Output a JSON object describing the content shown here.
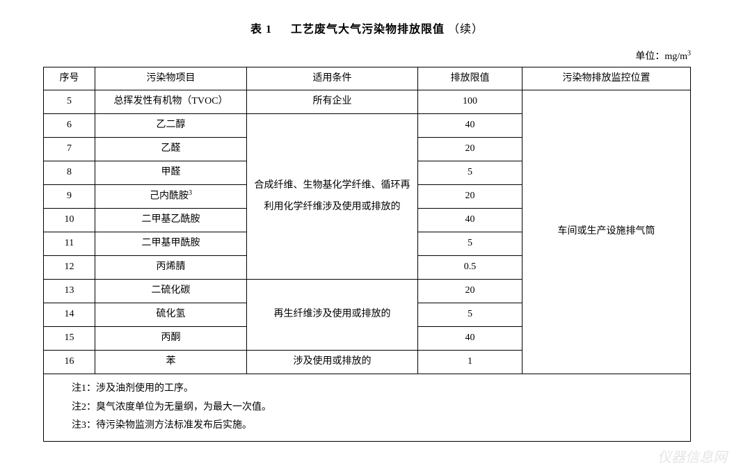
{
  "title": {
    "label": "表 1",
    "text": "工艺废气大气污染物排放限值",
    "suffix": "（续）"
  },
  "unit": {
    "prefix": "单位：",
    "value": "mg/m",
    "exponent": "3"
  },
  "headers": {
    "seq": "序号",
    "pollutant": "污染物项目",
    "condition": "适用条件",
    "limit": "排放限值",
    "location": "污染物排放监控位置"
  },
  "rows": [
    {
      "seq": "5",
      "pollutant": "总挥发性有机物（TVOC）",
      "limit": "100"
    },
    {
      "seq": "6",
      "pollutant": "乙二醇",
      "limit": "40"
    },
    {
      "seq": "7",
      "pollutant": "乙醛",
      "limit": "20"
    },
    {
      "seq": "8",
      "pollutant": "甲醛",
      "limit": "5"
    },
    {
      "seq": "9",
      "pollutant": "己内酰胺",
      "pollutant_sup": "3",
      "limit": "20"
    },
    {
      "seq": "10",
      "pollutant": "二甲基乙酰胺",
      "limit": "40"
    },
    {
      "seq": "11",
      "pollutant": "二甲基甲酰胺",
      "limit": "5"
    },
    {
      "seq": "12",
      "pollutant": "丙烯腈",
      "limit": "0.5"
    },
    {
      "seq": "13",
      "pollutant": "二硫化碳",
      "limit": "20"
    },
    {
      "seq": "14",
      "pollutant": "硫化氢",
      "limit": "5"
    },
    {
      "seq": "15",
      "pollutant": "丙酮",
      "limit": "40"
    },
    {
      "seq": "16",
      "pollutant": "苯",
      "limit": "1"
    }
  ],
  "conditions": {
    "row5": "所有企业",
    "rows6_12": "合成纤维、生物基化学纤维、循环再利用化学纤维涉及使用或排放的",
    "rows13_15": "再生纤维涉及使用或排放的",
    "row16": "涉及使用或排放的"
  },
  "location_merged": "车间或生产设施排气筒",
  "footnotes": [
    "注1：涉及油剂使用的工序。",
    "注2：臭气浓度单位为无量纲，为最大一次值。",
    "注3：待污染物监测方法标准发布后实施。"
  ],
  "colors": {
    "text": "#000000",
    "background": "#ffffff",
    "border": "#000000"
  },
  "typography": {
    "font_family": "SimSun",
    "body_fontsize": 14,
    "title_fontsize": 16
  },
  "watermark": "仪器信息网"
}
